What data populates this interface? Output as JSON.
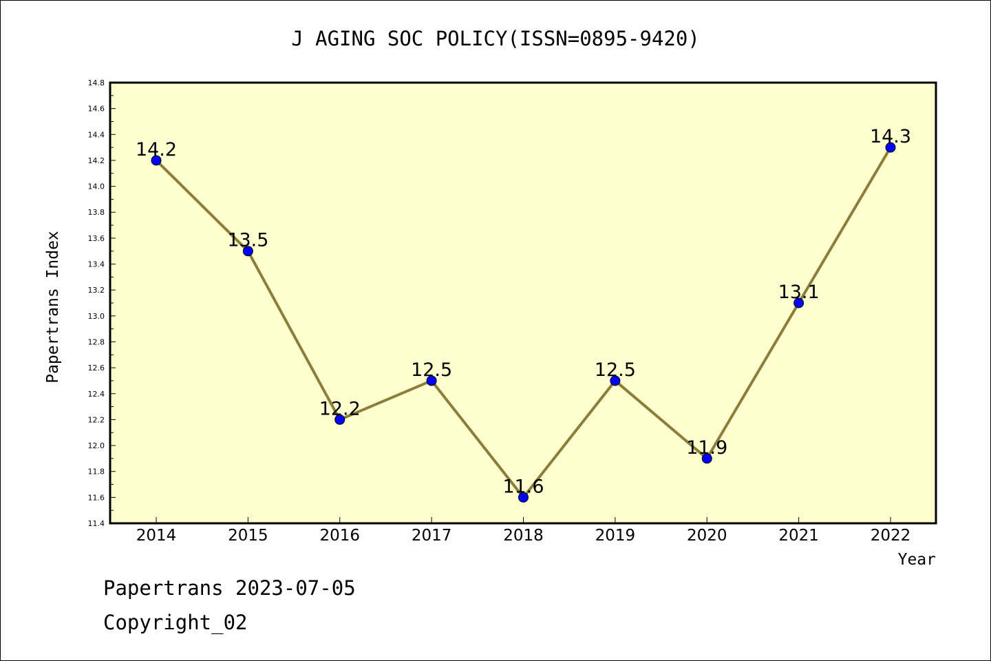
{
  "chart_data": {
    "type": "line",
    "title": "J AGING SOC POLICY(ISSN=0895-9420)",
    "xlabel": "Year",
    "ylabel": "Papertrans Index",
    "categories": [
      "2014",
      "2015",
      "2016",
      "2017",
      "2018",
      "2019",
      "2020",
      "2021",
      "2022"
    ],
    "series": [
      {
        "values": [
          14.2,
          13.5,
          12.2,
          12.5,
          11.6,
          12.5,
          11.9,
          13.1,
          14.3
        ],
        "labels": [
          "14.2",
          "13.5",
          "12.2",
          "12.5",
          "11.6",
          "12.5",
          "11.9",
          "13.1",
          "14.3"
        ]
      }
    ],
    "ylim": [
      11.4,
      14.8
    ],
    "yticks": [
      "11.4",
      "11.6",
      "11.8",
      "12.0",
      "12.2",
      "12.4",
      "12.6",
      "12.8",
      "13.0",
      "13.2",
      "13.4",
      "13.6",
      "13.8",
      "14.0",
      "14.2",
      "14.4",
      "14.6",
      "14.8"
    ],
    "grid": false,
    "colors": {
      "plot_background": "#ffffd0",
      "line": "#8b7d3a",
      "marker": "#0000ff"
    }
  },
  "footer": {
    "line1": "Papertrans 2023-07-05",
    "line2": "Copyright_02"
  }
}
